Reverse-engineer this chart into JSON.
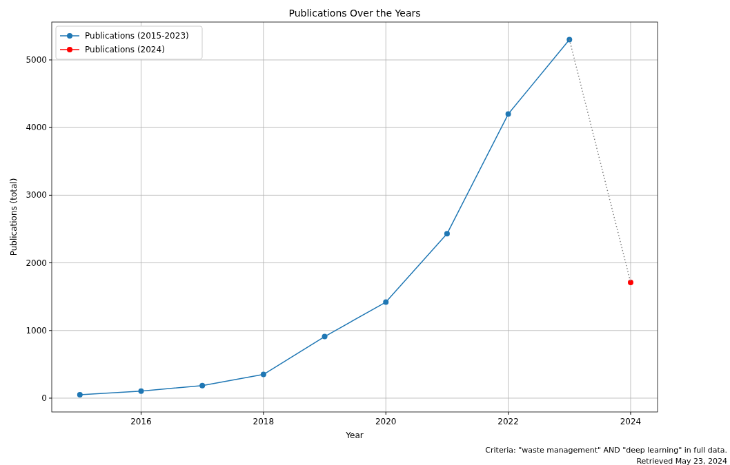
{
  "chart_data": {
    "type": "line",
    "title": "Publications Over the Years",
    "xlabel": "Year",
    "ylabel": "Publications (total)",
    "xlim": [
      2014.54,
      2024.44
    ],
    "xticks": [
      2016,
      2018,
      2020,
      2022,
      2024
    ],
    "ylim": [
      -204,
      5560
    ],
    "yticks": [
      0,
      1000,
      2000,
      3000,
      4000,
      5000
    ],
    "grid": true,
    "legend": "top left",
    "marker": "circle",
    "series": [
      {
        "name": "Publications (2015-2023)",
        "color": "#1f77b4",
        "x": [
          2015,
          2016,
          2017,
          2018,
          2019,
          2020,
          2021,
          2022,
          2023
        ],
        "values": [
          50,
          105,
          185,
          350,
          910,
          1420,
          2430,
          4200,
          5300
        ]
      },
      {
        "name": "Publications (2024)",
        "color": "#ff0000",
        "x": [
          2024
        ],
        "values": [
          1710
        ]
      },
      {
        "type": "line",
        "color": "#808080",
        "line_style": "dotted",
        "marker": "none",
        "x": [
          2023,
          2024
        ],
        "values": [
          5300,
          1710
        ]
      }
    ],
    "annotations": [
      "Criteria: \"waste management\" AND \"deep learning\" in full data.",
      "Retrieved May 23, 2024"
    ]
  }
}
